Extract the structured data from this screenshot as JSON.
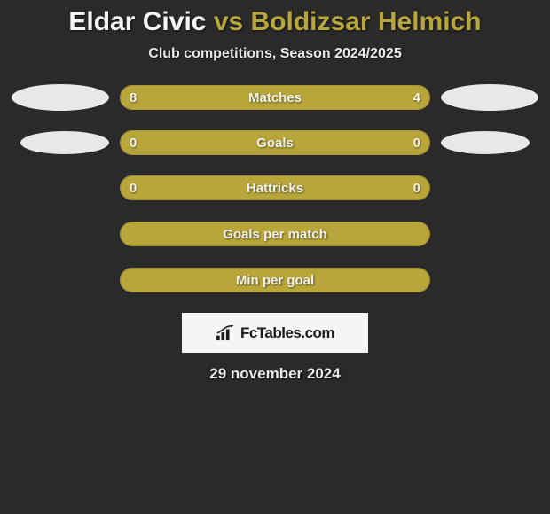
{
  "title": {
    "player1": "Eldar Civic",
    "vs": "vs",
    "player2": "Boldizsar Helmich",
    "player1_color": "#f5f5f5",
    "vs_color": "#b8a63a",
    "player2_color": "#b8a63a",
    "fontsize": 30
  },
  "subtitle": "Club competitions, Season 2024/2025",
  "subtitle_color": "#e8e8e8",
  "background_color": "#2a2a2a",
  "bar_fill_color": "#b8a63a",
  "bar_border_color": "#a8963a",
  "bar_text_color": "#f0f0f0",
  "badge_color": "#e8e8e8",
  "stats": [
    {
      "label": "Matches",
      "left_value": "8",
      "right_value": "4",
      "left_num": 8,
      "right_num": 4,
      "left_pct": 66.7,
      "right_pct": 33.3,
      "show_badges": true
    },
    {
      "label": "Goals",
      "left_value": "0",
      "right_value": "0",
      "left_num": 0,
      "right_num": 0,
      "left_pct": 50,
      "right_pct": 50,
      "show_badges": true,
      "badge_indent": true
    },
    {
      "label": "Hattricks",
      "left_value": "0",
      "right_value": "0",
      "left_num": 0,
      "right_num": 0,
      "left_pct": 50,
      "right_pct": 50,
      "show_badges": false
    },
    {
      "label": "Goals per match",
      "left_value": "",
      "right_value": "",
      "left_num": 0,
      "right_num": 0,
      "left_pct": 50,
      "right_pct": 50,
      "show_badges": false
    },
    {
      "label": "Min per goal",
      "left_value": "",
      "right_value": "",
      "left_num": 0,
      "right_num": 0,
      "left_pct": 50,
      "right_pct": 50,
      "show_badges": false
    }
  ],
  "footer": {
    "logo_text": "FcTables.com",
    "logo_bg": "#f5f5f5",
    "logo_text_color": "#1a1a1a",
    "date": "29 november 2024"
  }
}
